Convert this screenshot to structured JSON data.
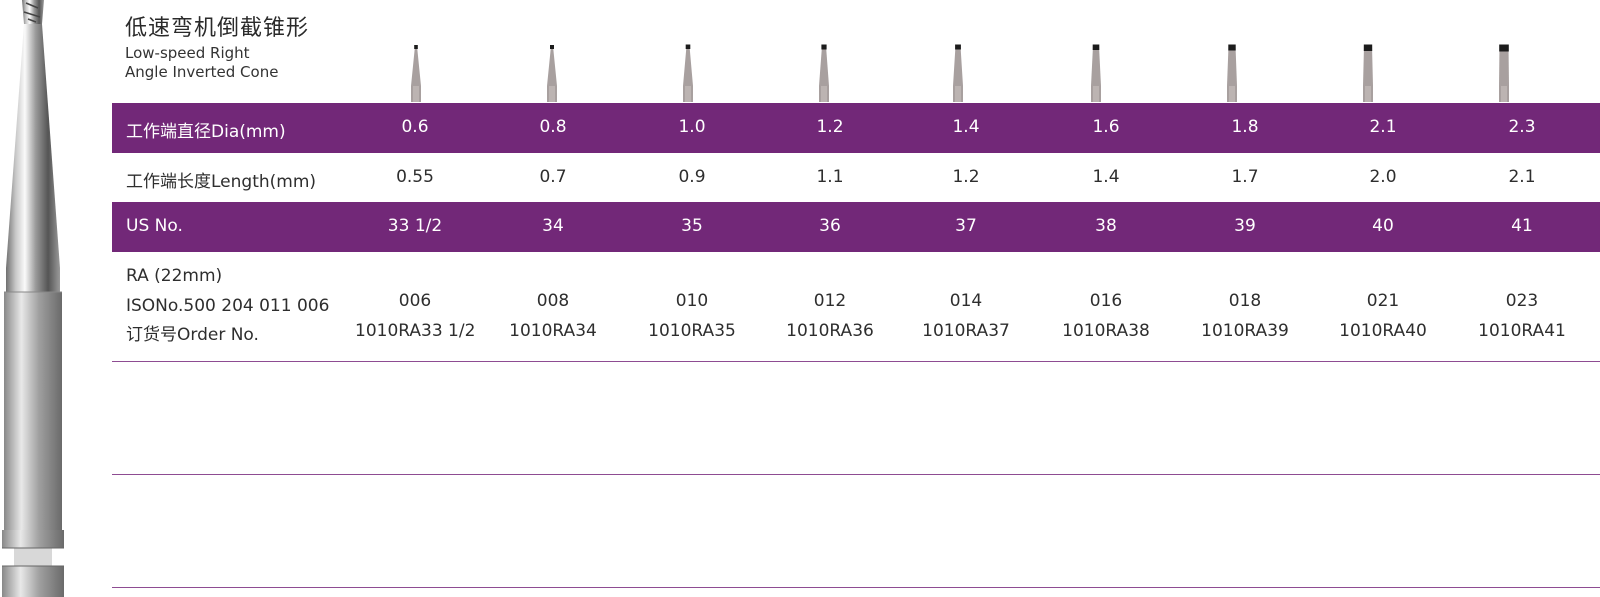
{
  "header": {
    "title_zh": "低速弯机倒截锥形",
    "title_en_line1": "Low-speed Right",
    "title_en_line2": "Angle Inverted Cone"
  },
  "table": {
    "dia": {
      "label": "工作端直径Dia(mm)",
      "values": [
        "0.6",
        "0.8",
        "1.0",
        "1.2",
        "1.4",
        "1.6",
        "1.8",
        "2.1",
        "2.3"
      ]
    },
    "length": {
      "label": "工作端长度Length(mm)",
      "values": [
        "0.55",
        "0.7",
        "0.9",
        "1.1",
        "1.2",
        "1.4",
        "1.7",
        "2.0",
        "2.1"
      ]
    },
    "us_no": {
      "label": "US No.",
      "values": [
        "33 1/2",
        "34",
        "35",
        "36",
        "37",
        "38",
        "39",
        "40",
        "41"
      ]
    },
    "ra": {
      "label_line1": "RA (22mm)",
      "label_line2": "ISONo.500 204 011 006",
      "label_line3": "订货号Order No.",
      "iso_values": [
        "006",
        "008",
        "010",
        "012",
        "014",
        "016",
        "018",
        "021",
        "023"
      ],
      "order_values": [
        "1010RA33 1/2",
        "1010RA34",
        "1010RA35",
        "1010RA36",
        "1010RA37",
        "1010RA38",
        "1010RA39",
        "1010RA40",
        "1010RA41"
      ]
    }
  },
  "colors": {
    "band": "#722878",
    "rule": "#8e4c92",
    "shank": "#a8a09f",
    "head": "#1c1c1c"
  },
  "icons": {
    "bur_image": "dental-bur-icon",
    "product": "inverted-cone-bur-icon"
  }
}
